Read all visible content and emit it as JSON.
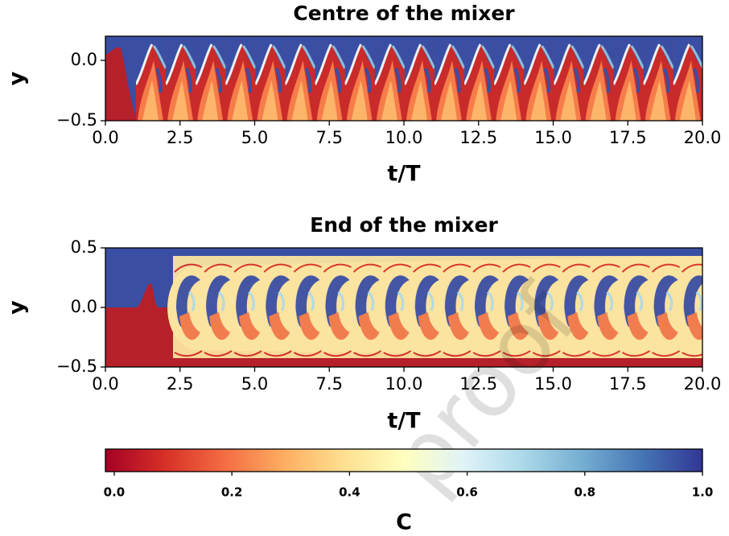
{
  "chart_data": [
    {
      "type": "heatmap",
      "title": "Centre of the mixer",
      "xlabel": "t/T",
      "ylabel": "y",
      "xlim": [
        0,
        20
      ],
      "ylim": [
        -0.5,
        0.2
      ],
      "xticks": [
        {
          "value": 0,
          "label": "0.0"
        },
        {
          "value": 2.5,
          "label": "2.5"
        },
        {
          "value": 5,
          "label": "5.0"
        },
        {
          "value": 7.5,
          "label": "7.5"
        },
        {
          "value": 10,
          "label": "10.0"
        },
        {
          "value": 12.5,
          "label": "12.5"
        },
        {
          "value": 15,
          "label": "15.0"
        },
        {
          "value": 17.5,
          "label": "17.5"
        },
        {
          "value": 20,
          "label": "20.0"
        }
      ],
      "yticks": [
        {
          "value": -0.5,
          "label": "−0.5"
        },
        {
          "value": 0,
          "label": "0.0"
        }
      ]
    },
    {
      "type": "heatmap",
      "title": "End of the mixer",
      "xlabel": "t/T",
      "ylabel": "y",
      "xlim": [
        0,
        20
      ],
      "ylim": [
        -0.5,
        0.5
      ],
      "xticks": [
        {
          "value": 0,
          "label": "0.0"
        },
        {
          "value": 2.5,
          "label": "2.5"
        },
        {
          "value": 5,
          "label": "5.0"
        },
        {
          "value": 7.5,
          "label": "7.5"
        },
        {
          "value": 10,
          "label": "10.0"
        },
        {
          "value": 12.5,
          "label": "12.5"
        },
        {
          "value": 15,
          "label": "15.0"
        },
        {
          "value": 17.5,
          "label": "17.5"
        },
        {
          "value": 20,
          "label": "20.0"
        }
      ],
      "yticks": [
        {
          "value": -0.5,
          "label": "−0.5"
        },
        {
          "value": 0,
          "label": "0.0"
        },
        {
          "value": 0.5,
          "label": "0.5"
        }
      ]
    }
  ],
  "colorbar": {
    "label": "C",
    "lim": [
      -0.015,
      1.0
    ],
    "ticks": [
      {
        "value": 0,
        "label": "0.0"
      },
      {
        "value": 0.2,
        "label": "0.2"
      },
      {
        "value": 0.4,
        "label": "0.4"
      },
      {
        "value": 0.6,
        "label": "0.6"
      },
      {
        "value": 0.8,
        "label": "0.8"
      },
      {
        "value": 1,
        "label": "1.0"
      }
    ],
    "colors": [
      "#a50026",
      "#d73027",
      "#f46d43",
      "#fdae61",
      "#fee090",
      "#ffffbf",
      "#e0f3f8",
      "#abd9e9",
      "#74add1",
      "#4575b4",
      "#313695"
    ]
  },
  "watermark": "proof"
}
